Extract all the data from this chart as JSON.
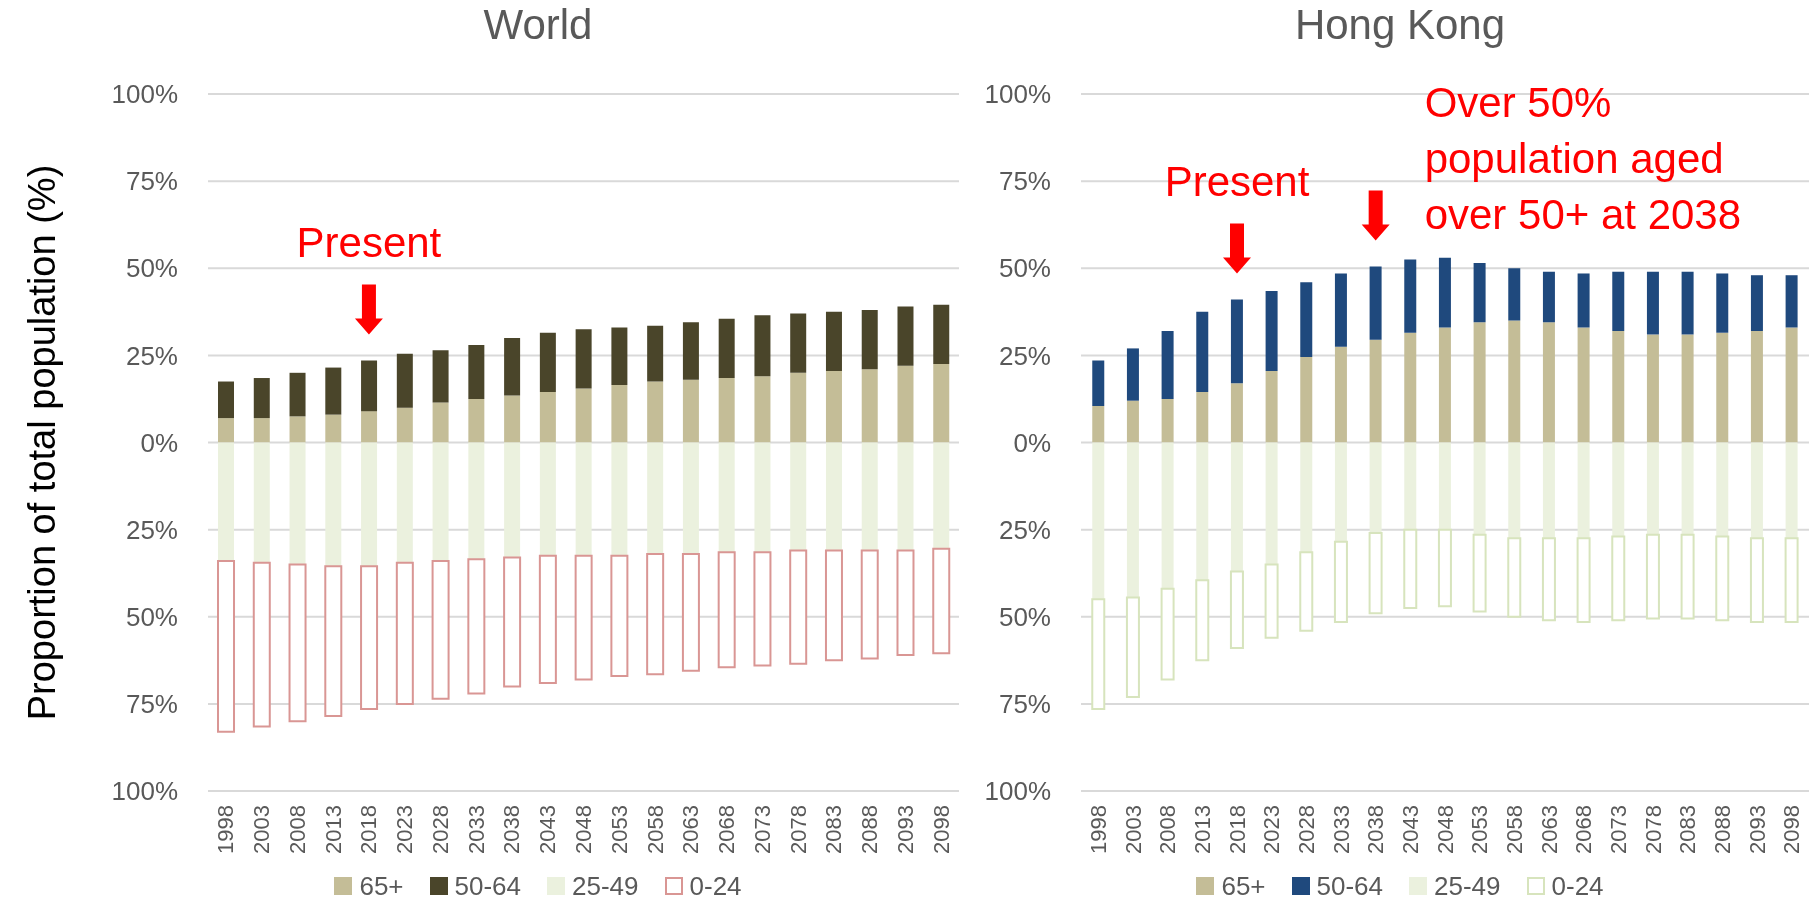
{
  "chart_data": [
    {
      "type": "bar",
      "title": "World",
      "ylabel": "Proportion of total population (%)",
      "categories": [
        "1998",
        "2003",
        "2008",
        "2013",
        "2018",
        "2023",
        "2028",
        "2033",
        "2038",
        "2043",
        "2048",
        "2053",
        "2058",
        "2063",
        "2068",
        "2073",
        "2078",
        "2083",
        "2088",
        "2093",
        "2098"
      ],
      "series": [
        {
          "name": "65+",
          "color": "#c4bd97",
          "values": [
            7,
            7,
            7.5,
            8,
            9,
            10,
            11.5,
            12.5,
            13.5,
            14.5,
            15.5,
            16.5,
            17.5,
            18,
            18.5,
            19,
            20,
            20.5,
            21,
            22,
            22.5
          ]
        },
        {
          "name": "50-64",
          "color": "#4a452a",
          "values": [
            10.5,
            11.5,
            12.5,
            13.5,
            14.5,
            15.5,
            15,
            15.5,
            16.5,
            17,
            17,
            16.5,
            16,
            16.5,
            17,
            17.5,
            17,
            17,
            17,
            17,
            17
          ]
        },
        {
          "name": "25-49",
          "color": "#ebf1de",
          "values": [
            -34,
            -34.5,
            -35,
            -35.5,
            -35.5,
            -34.5,
            -34,
            -33.5,
            -33,
            -32.5,
            -32.5,
            -32.5,
            -32,
            -32,
            -31.5,
            -31.5,
            -31,
            -31,
            -31,
            -31,
            -30.5
          ]
        },
        {
          "name": "0-24",
          "color": "#d99694",
          "values": [
            -49,
            -47,
            -45,
            -43,
            -41,
            -40.5,
            -39.5,
            -38.5,
            -37,
            -36.5,
            -35.5,
            -34.5,
            -34.5,
            -33.5,
            -33,
            -32.5,
            -32.5,
            -31.5,
            -31,
            -30,
            -30
          ]
        }
      ],
      "stacked": true,
      "ylim": [
        -100,
        100
      ],
      "yticks": [
        {
          "value": -100,
          "label": "100%"
        },
        {
          "value": -75,
          "label": "75%"
        },
        {
          "value": -50,
          "label": "50%"
        },
        {
          "value": -25,
          "label": "25%"
        },
        {
          "value": 0,
          "label": "0%"
        },
        {
          "value": 25,
          "label": "25%"
        },
        {
          "value": 50,
          "label": "50%"
        },
        {
          "value": 75,
          "label": "75%"
        },
        {
          "value": 100,
          "label": "100%"
        }
      ],
      "grid": "y",
      "legend": "bottom",
      "annotations": [
        {
          "text": "Present",
          "x": "2018",
          "y": 23.5
        }
      ]
    },
    {
      "type": "bar",
      "title": "Hong Kong",
      "categories": [
        "1998",
        "2003",
        "2008",
        "2013",
        "2018",
        "2023",
        "2028",
        "2033",
        "2038",
        "2043",
        "2048",
        "2053",
        "2058",
        "2063",
        "2068",
        "2073",
        "2078",
        "2083",
        "2088",
        "2093",
        "2098"
      ],
      "series": [
        {
          "name": "65+",
          "color": "#c4bd97",
          "values": [
            10.5,
            12,
            12.5,
            14.5,
            17,
            20.5,
            24.5,
            27.5,
            29.5,
            31.5,
            33,
            34.5,
            35,
            34.5,
            33,
            32,
            31,
            31,
            31.5,
            32,
            33
          ]
        },
        {
          "name": "50-64",
          "color": "#1f497d",
          "values": [
            13,
            15,
            19.5,
            23,
            24,
            23,
            21.5,
            21,
            21,
            21,
            20,
            17,
            15,
            14.5,
            15.5,
            17,
            18,
            18,
            17,
            16,
            15
          ]
        },
        {
          "name": "25-49",
          "color": "#ebf1de",
          "values": [
            -45,
            -44.5,
            -42,
            -39.5,
            -37,
            -35,
            -31.5,
            -28.5,
            -26,
            -25,
            -25,
            -26.5,
            -27.5,
            -27.5,
            -27.5,
            -27,
            -26.5,
            -26.5,
            -27,
            -27.5,
            -27.5
          ]
        },
        {
          "name": "0-24",
          "color": "#d7e4bd",
          "values": [
            -31.5,
            -28.5,
            -26,
            -23,
            -22,
            -21,
            -22.5,
            -23,
            -23,
            -22.5,
            -22,
            -22,
            -22.5,
            -23.5,
            -24,
            -24,
            -24,
            -24,
            -24,
            -24,
            -24
          ]
        }
      ],
      "stacked": true,
      "ylim": [
        -100,
        100
      ],
      "yticks": [
        {
          "value": -100,
          "label": "100%"
        },
        {
          "value": -75,
          "label": "75%"
        },
        {
          "value": -50,
          "label": "50%"
        },
        {
          "value": -25,
          "label": "25%"
        },
        {
          "value": 0,
          "label": "0%"
        },
        {
          "value": 25,
          "label": "25%"
        },
        {
          "value": 50,
          "label": "50%"
        },
        {
          "value": 75,
          "label": "75%"
        },
        {
          "value": 100,
          "label": "100%"
        }
      ],
      "grid": "y",
      "legend": "bottom",
      "annotations": [
        {
          "text": "Present",
          "x": "2018",
          "y": 41
        },
        {
          "text": "Over 50% population aged over 50+ at 2038",
          "x": "2038",
          "y": 50.5
        }
      ]
    }
  ]
}
